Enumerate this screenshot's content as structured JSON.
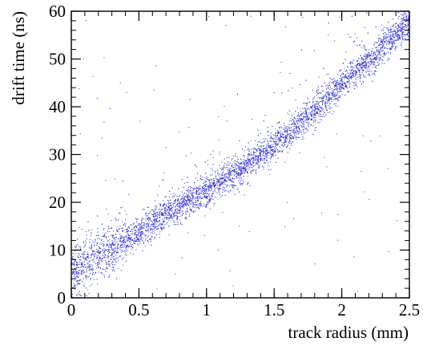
{
  "chart_data": {
    "type": "scatter",
    "title": "",
    "xlabel": "track radius (mm)",
    "ylabel": "drift time (ns)",
    "xlim": [
      0,
      2.5
    ],
    "ylim": [
      0,
      60
    ],
    "x_ticks": [
      0,
      0.5,
      1,
      1.5,
      2,
      2.5
    ],
    "x_tick_labels": [
      "0",
      "0.5",
      "1",
      "1.5",
      "2",
      "2.5"
    ],
    "y_ticks": [
      0,
      10,
      20,
      30,
      40,
      50,
      60
    ],
    "y_tick_labels": [
      "0",
      "10",
      "20",
      "30",
      "40",
      "50",
      "60"
    ],
    "grid": false,
    "legend": "none",
    "marker_color": "#2222dd",
    "trend_points": [
      {
        "x": 0.0,
        "y": 5.5
      },
      {
        "x": 0.25,
        "y": 9.5
      },
      {
        "x": 0.5,
        "y": 14
      },
      {
        "x": 0.75,
        "y": 18.5
      },
      {
        "x": 1.0,
        "y": 22.5
      },
      {
        "x": 1.25,
        "y": 27
      },
      {
        "x": 1.5,
        "y": 32
      },
      {
        "x": 1.75,
        "y": 38
      },
      {
        "x": 2.0,
        "y": 45
      },
      {
        "x": 2.25,
        "y": 51
      },
      {
        "x": 2.5,
        "y": 58
      }
    ]
  }
}
